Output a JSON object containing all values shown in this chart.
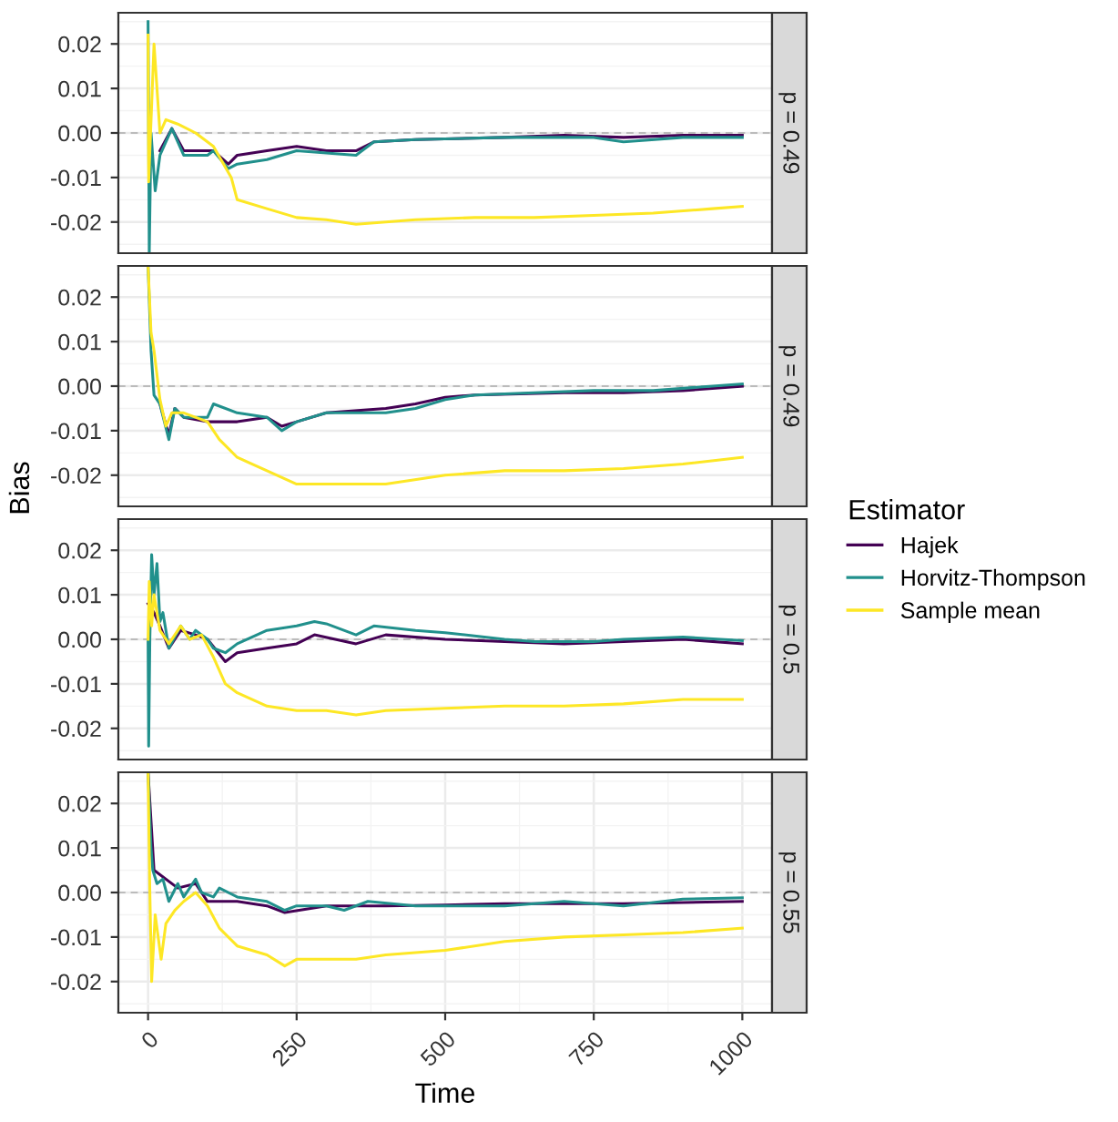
{
  "chart_data": [
    {
      "type": "line",
      "title": "p = 0.49",
      "legend": "right",
      "legend_title": "Estimator",
      "grid": true,
      "tick_labels": "y",
      "xlim": [
        -50,
        1050
      ],
      "ylim": [
        -0.027,
        0.027
      ],
      "yticks": [
        {
          "value": -0.02,
          "label": "-0.02"
        },
        {
          "value": -0.01,
          "label": "-0.01"
        },
        {
          "value": 0,
          "label": "0.00"
        },
        {
          "value": 0.01,
          "label": "0.01"
        },
        {
          "value": 0.02,
          "label": "0.02"
        }
      ],
      "ref_lines": [
        {
          "axis": "y",
          "value": 0,
          "color": "#bbbbbb",
          "line_style": "dashed"
        }
      ],
      "series": [
        {
          "name": "Hajek",
          "color": "#440154",
          "x": [
            20,
            40,
            60,
            100,
            110,
            135,
            150,
            200,
            250,
            300,
            350,
            380,
            450,
            600,
            700,
            800,
            900,
            1000
          ],
          "values": [
            -0.004,
            0.001,
            -0.004,
            -0.004,
            -0.004,
            -0.007,
            -0.005,
            -0.004,
            -0.003,
            -0.004,
            -0.004,
            -0.002,
            -0.0015,
            -0.001,
            -0.0005,
            -0.001,
            -0.0005,
            -0.0005
          ]
        },
        {
          "name": "Horvitz-Thompson",
          "color": "#21908c",
          "x": [
            0,
            2,
            5,
            12,
            20,
            40,
            60,
            100,
            110,
            135,
            150,
            200,
            250,
            350,
            360,
            380,
            450,
            600,
            750,
            800,
            900,
            1000
          ],
          "values": [
            0.025,
            -0.027,
            0.0,
            -0.013,
            -0.005,
            0.001,
            -0.005,
            -0.005,
            -0.004,
            -0.008,
            -0.007,
            -0.006,
            -0.004,
            -0.005,
            -0.004,
            -0.002,
            -0.0015,
            -0.001,
            -0.001,
            -0.002,
            -0.001,
            -0.001
          ]
        },
        {
          "name": "Sample mean",
          "color": "#fde725",
          "x": [
            0,
            1,
            10,
            20,
            30,
            50,
            80,
            110,
            140,
            150,
            200,
            250,
            300,
            350,
            400,
            450,
            550,
            650,
            750,
            850,
            950,
            1000
          ],
          "values": [
            0.022,
            -0.011,
            0.02,
            0.0,
            0.003,
            0.002,
            0.0,
            -0.003,
            -0.01,
            -0.015,
            -0.017,
            -0.019,
            -0.0195,
            -0.0205,
            -0.02,
            -0.0195,
            -0.019,
            -0.019,
            -0.0185,
            -0.018,
            -0.017,
            -0.0165
          ]
        }
      ]
    },
    {
      "type": "line",
      "title": "p = 0.49",
      "ylabel": "Bias",
      "grid": true,
      "tick_labels": "y",
      "xlim": [
        -50,
        1050
      ],
      "ylim": [
        -0.027,
        0.027
      ],
      "yticks": [
        {
          "value": -0.02,
          "label": "-0.02"
        },
        {
          "value": -0.01,
          "label": "-0.01"
        },
        {
          "value": 0,
          "label": "0.00"
        },
        {
          "value": 0.01,
          "label": "0.01"
        },
        {
          "value": 0.02,
          "label": "0.02"
        }
      ],
      "ref_lines": [
        {
          "axis": "y",
          "value": 0,
          "color": "#bbbbbb",
          "line_style": "dashed"
        }
      ],
      "series": [
        {
          "color": "#440154",
          "x": [
            20,
            35,
            45,
            60,
            100,
            150,
            200,
            225,
            250,
            300,
            400,
            450,
            500,
            550,
            700,
            800,
            900,
            1000
          ],
          "values": [
            -0.004,
            -0.011,
            -0.005,
            -0.007,
            -0.008,
            -0.008,
            -0.007,
            -0.009,
            -0.008,
            -0.006,
            -0.005,
            -0.004,
            -0.0025,
            -0.002,
            -0.0015,
            -0.0015,
            -0.001,
            0.0
          ]
        },
        {
          "color": "#21908c",
          "x": [
            0,
            5,
            10,
            20,
            35,
            45,
            60,
            100,
            110,
            150,
            200,
            225,
            250,
            300,
            400,
            450,
            500,
            550,
            650,
            750,
            850,
            1000
          ],
          "values": [
            0.027,
            0.008,
            -0.002,
            -0.004,
            -0.012,
            -0.005,
            -0.007,
            -0.007,
            -0.004,
            -0.006,
            -0.007,
            -0.01,
            -0.008,
            -0.006,
            -0.006,
            -0.005,
            -0.003,
            -0.002,
            -0.0015,
            -0.001,
            -0.001,
            0.0005
          ]
        },
        {
          "color": "#fde725",
          "x": [
            0,
            5,
            10,
            20,
            30,
            40,
            60,
            100,
            120,
            150,
            200,
            250,
            300,
            400,
            500,
            600,
            700,
            800,
            900,
            1000
          ],
          "values": [
            0.027,
            0.012,
            0.008,
            -0.003,
            -0.009,
            -0.006,
            -0.006,
            -0.008,
            -0.012,
            -0.016,
            -0.019,
            -0.022,
            -0.022,
            -0.022,
            -0.02,
            -0.019,
            -0.019,
            -0.0185,
            -0.0175,
            -0.016
          ]
        }
      ]
    },
    {
      "type": "line",
      "title": "p = 0.5",
      "grid": true,
      "tick_labels": "y",
      "xlim": [
        -50,
        1050
      ],
      "ylim": [
        -0.027,
        0.027
      ],
      "yticks": [
        {
          "value": -0.02,
          "label": "-0.02"
        },
        {
          "value": -0.01,
          "label": "-0.01"
        },
        {
          "value": 0,
          "label": "0.00"
        },
        {
          "value": 0.01,
          "label": "0.01"
        },
        {
          "value": 0.02,
          "label": "0.02"
        }
      ],
      "ref_lines": [
        {
          "axis": "y",
          "value": 0,
          "color": "#bbbbbb",
          "line_style": "dashed"
        }
      ],
      "series": [
        {
          "color": "#440154",
          "x": [
            0,
            10,
            20,
            35,
            55,
            80,
            100,
            130,
            150,
            200,
            250,
            280,
            350,
            400,
            500,
            600,
            700,
            800,
            900,
            1000
          ],
          "values": [
            0.008,
            0.006,
            0.003,
            -0.002,
            0.002,
            0.001,
            0.0,
            -0.005,
            -0.003,
            -0.002,
            -0.001,
            0.001,
            -0.001,
            0.001,
            0.0,
            -0.0005,
            -0.001,
            -0.0005,
            0.0,
            -0.001
          ]
        },
        {
          "color": "#21908c",
          "x": [
            0,
            1,
            3,
            6,
            10,
            15,
            20,
            25,
            35,
            55,
            70,
            80,
            100,
            110,
            130,
            150,
            200,
            250,
            280,
            300,
            350,
            380,
            450,
            500,
            600,
            650,
            750,
            800,
            900,
            1000
          ],
          "values": [
            0.0,
            -0.024,
            0.0,
            0.019,
            0.01,
            0.017,
            0.004,
            0.006,
            -0.002,
            0.003,
            0.0,
            0.002,
            0.0,
            -0.002,
            -0.003,
            -0.001,
            0.002,
            0.003,
            0.004,
            0.0035,
            0.001,
            0.003,
            0.002,
            0.0015,
            0.0,
            -0.0005,
            -0.0005,
            0.0,
            0.0005,
            -0.0003
          ]
        },
        {
          "color": "#fde725",
          "x": [
            0,
            2,
            6,
            10,
            20,
            35,
            55,
            70,
            90,
            110,
            130,
            150,
            200,
            250,
            300,
            350,
            400,
            500,
            600,
            700,
            800,
            900,
            1000
          ],
          "values": [
            0.0,
            0.013,
            0.003,
            0.01,
            0.002,
            -0.001,
            0.003,
            0.0,
            0.001,
            -0.004,
            -0.01,
            -0.012,
            -0.015,
            -0.016,
            -0.016,
            -0.017,
            -0.016,
            -0.0155,
            -0.015,
            -0.015,
            -0.0145,
            -0.0135,
            -0.0135
          ]
        }
      ]
    },
    {
      "type": "line",
      "title": "p = 0.55",
      "xlabel": "Time",
      "grid": true,
      "xlim": [
        -50,
        1050
      ],
      "ylim": [
        -0.027,
        0.027
      ],
      "xticks": [
        0,
        250,
        500,
        750,
        1000
      ],
      "yticks": [
        {
          "value": -0.02,
          "label": "-0.02"
        },
        {
          "value": -0.01,
          "label": "-0.01"
        },
        {
          "value": 0,
          "label": "0.00"
        },
        {
          "value": 0.01,
          "label": "0.01"
        },
        {
          "value": 0.02,
          "label": "0.02"
        }
      ],
      "ref_lines": [
        {
          "axis": "y",
          "value": 0,
          "color": "#bbbbbb",
          "line_style": "dashed"
        }
      ],
      "series": [
        {
          "color": "#440154",
          "x": [
            0,
            10,
            50,
            80,
            100,
            150,
            200,
            230,
            300,
            400,
            500,
            600,
            800,
            1000
          ],
          "values": [
            0.027,
            0.005,
            0.001,
            0.002,
            -0.002,
            -0.002,
            -0.003,
            -0.0045,
            -0.003,
            -0.003,
            -0.0028,
            -0.0025,
            -0.0025,
            -0.002
          ]
        },
        {
          "color": "#21908c",
          "x": [
            0,
            5,
            8,
            15,
            25,
            35,
            50,
            60,
            80,
            90,
            110,
            120,
            150,
            200,
            230,
            250,
            300,
            330,
            370,
            450,
            500,
            600,
            700,
            800,
            900,
            1000
          ],
          "values": [
            0.027,
            0.01,
            0.005,
            0.002,
            0.003,
            -0.002,
            0.002,
            -0.001,
            0.003,
            0.0,
            -0.001,
            0.001,
            -0.001,
            -0.002,
            -0.004,
            -0.003,
            -0.003,
            -0.004,
            -0.002,
            -0.003,
            -0.003,
            -0.003,
            -0.002,
            -0.003,
            -0.0015,
            -0.0012
          ]
        },
        {
          "color": "#fde725",
          "x": [
            0,
            3,
            6,
            12,
            22,
            30,
            45,
            60,
            80,
            100,
            120,
            150,
            200,
            230,
            250,
            350,
            400,
            500,
            600,
            700,
            800,
            900,
            1000
          ],
          "values": [
            0.027,
            0.0,
            -0.02,
            -0.005,
            -0.015,
            -0.007,
            -0.004,
            -0.002,
            0.0,
            -0.003,
            -0.008,
            -0.012,
            -0.014,
            -0.0165,
            -0.015,
            -0.015,
            -0.014,
            -0.013,
            -0.011,
            -0.01,
            -0.0095,
            -0.009,
            -0.008
          ]
        }
      ]
    }
  ]
}
